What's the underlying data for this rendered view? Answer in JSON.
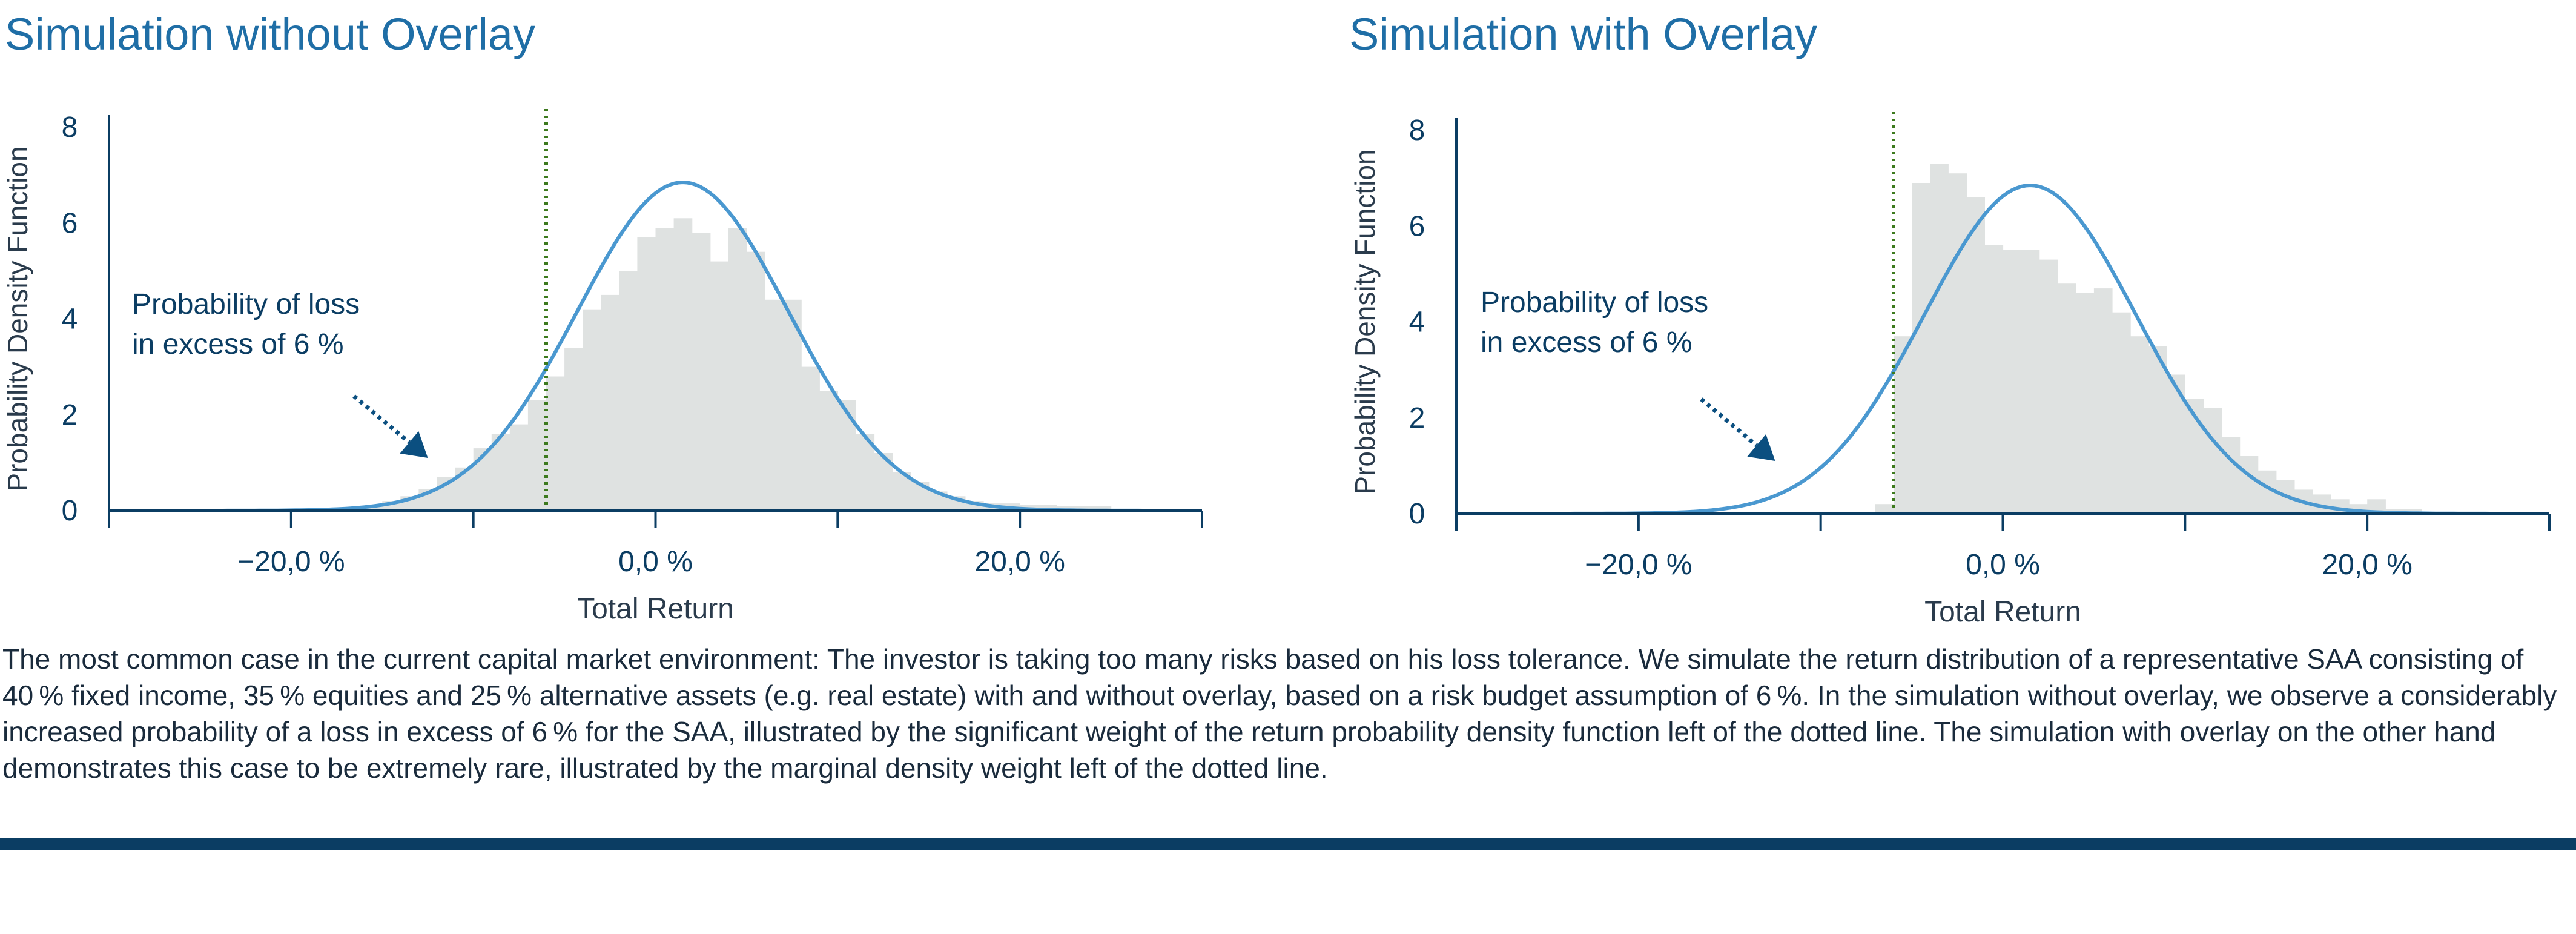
{
  "charts_meta": {
    "pdf_color": "#4a98d0",
    "hist_color": "#dfe2e1",
    "threshold_color": "#3d7a1e",
    "axis_color": "#0b3d63",
    "text_color": "#0b3d63"
  },
  "chart_data": [
    {
      "type": "bar",
      "title": "Simulation without Overlay",
      "xlabel": "Total Return",
      "ylabel": "Probability Density Function",
      "xlim": [
        -30,
        30
      ],
      "ylim": [
        0,
        8
      ],
      "xticks": [
        -30,
        -20,
        -10,
        0,
        10,
        20,
        30
      ],
      "xtick_labels": [
        {
          "value": -20,
          "label": "−20,0 %"
        },
        {
          "value": 0,
          "label": "0,0 %"
        },
        {
          "value": 20,
          "label": "20,0 %"
        }
      ],
      "yticks": [
        0,
        2,
        4,
        6,
        8
      ],
      "histogram": {
        "bin_width": 1,
        "bin_start": [
          -17,
          -16,
          -15,
          -14,
          -13,
          -12,
          -11,
          -10,
          -9,
          -8,
          -7,
          -6,
          -5,
          -4,
          -3,
          -2,
          -1,
          0,
          1,
          2,
          3,
          4,
          5,
          6,
          7,
          8,
          9,
          10,
          11,
          12,
          13,
          14,
          15,
          16,
          17,
          18,
          19,
          20,
          21,
          22,
          23,
          24
        ],
        "density": [
          0.05,
          0.1,
          0.2,
          0.3,
          0.45,
          0.7,
          0.9,
          1.3,
          1.6,
          1.8,
          2.3,
          2.8,
          3.4,
          4.2,
          4.5,
          5.0,
          5.7,
          5.9,
          6.1,
          5.8,
          5.2,
          5.9,
          5.4,
          4.4,
          4.4,
          3.0,
          2.5,
          2.3,
          1.6,
          1.2,
          0.8,
          0.6,
          0.4,
          0.3,
          0.2,
          0.15,
          0.15,
          0.12,
          0.12,
          0.1,
          0.1,
          0.1
        ]
      },
      "series": [
        {
          "name": "",
          "type": "normal_pdf",
          "mean": 1.5,
          "std": 5.8,
          "peak": 6.85
        }
      ],
      "threshold": {
        "x": -6,
        "style": "dotted"
      },
      "annotation": {
        "lines": [
          "Probability of loss",
          "in excess of 6 %"
        ],
        "arrow_to": [
          -12.5,
          1.1
        ]
      }
    },
    {
      "type": "bar",
      "title": "Simulation with Overlay",
      "xlabel": "Total Return",
      "ylabel": "Probability Density Function",
      "xlim": [
        -30,
        30
      ],
      "ylim": [
        0,
        8
      ],
      "xticks": [
        -30,
        -20,
        -10,
        0,
        10,
        20,
        30
      ],
      "xtick_labels": [
        {
          "value": -20,
          "label": "−20,0 %"
        },
        {
          "value": 0,
          "label": "0,0 %"
        },
        {
          "value": 20,
          "label": "20,0 %"
        }
      ],
      "yticks": [
        0,
        2,
        4,
        6,
        8
      ],
      "histogram": {
        "bin_width": 1,
        "bin_start": [
          -7,
          -6,
          -5,
          -4,
          -3,
          -2,
          -1,
          0,
          1,
          2,
          3,
          4,
          5,
          6,
          7,
          8,
          9,
          10,
          11,
          12,
          13,
          14,
          15,
          16,
          17,
          18,
          19,
          20,
          21,
          22
        ],
        "density": [
          0.2,
          3.7,
          6.9,
          7.3,
          7.1,
          6.6,
          5.6,
          5.5,
          5.5,
          5.3,
          4.8,
          4.6,
          4.7,
          4.2,
          3.7,
          3.5,
          2.9,
          2.4,
          2.2,
          1.6,
          1.2,
          0.9,
          0.7,
          0.5,
          0.4,
          0.3,
          0.2,
          0.3,
          0.1,
          0.1
        ]
      },
      "series": [
        {
          "name": "",
          "type": "normal_pdf",
          "mean": 1.5,
          "std": 5.8,
          "peak": 6.85
        }
      ],
      "threshold": {
        "x": -6,
        "style": "dotted"
      },
      "annotation": {
        "lines": [
          "Probability of loss",
          "in excess of 6 %"
        ],
        "arrow_to": [
          -12.5,
          1.1
        ]
      }
    }
  ],
  "caption": "The most common case in the current capital market environment: The investor is taking too many risks based on his loss tolerance. We simulate the return distribution of a representative SAA consisting of 40 % fixed income, 35 % equities and 25 % alternative assets (e.g. real estate) with and without overlay, based on a risk budget assumption of 6 %. In the simulation without overlay, we observe a considerably increased probability of a loss in excess of 6 % for the SAA, illustrated by the significant weight of the return probability density function left of the dotted line. The simulation with overlay on the other hand demonstrates this case to be extremely rare, illustrated by the marginal density weight left of the dotted line."
}
